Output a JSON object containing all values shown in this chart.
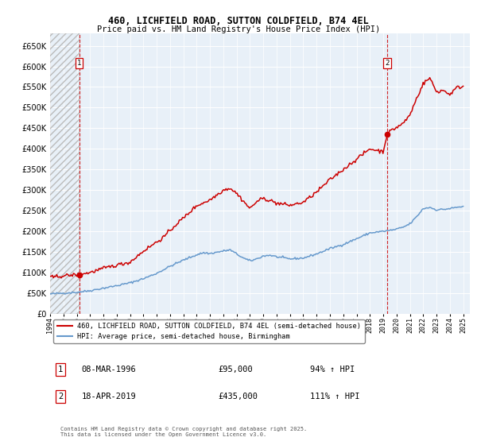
{
  "title_line1": "460, LICHFIELD ROAD, SUTTON COLDFIELD, B74 4EL",
  "title_line2": "Price paid vs. HM Land Registry's House Price Index (HPI)",
  "legend_line1": "460, LICHFIELD ROAD, SUTTON COLDFIELD, B74 4EL (semi-detached house)",
  "legend_line2": "HPI: Average price, semi-detached house, Birmingham",
  "annotation1_date": "08-MAR-1996",
  "annotation1_price": "£95,000",
  "annotation1_hpi": "94% ↑ HPI",
  "annotation2_date": "18-APR-2019",
  "annotation2_price": "£435,000",
  "annotation2_hpi": "111% ↑ HPI",
  "footer": "Contains HM Land Registry data © Crown copyright and database right 2025.\nThis data is licensed under the Open Government Licence v3.0.",
  "sale1_year": 1996.19,
  "sale1_price": 95000,
  "sale2_year": 2019.29,
  "sale2_price": 435000,
  "red_color": "#cc0000",
  "blue_color": "#6699cc",
  "plot_bg_color": "#e8f0f8",
  "ylim": [
    0,
    680000
  ],
  "xlim_left": 1994,
  "xlim_right": 2025.5,
  "hpi_anchors": [
    [
      1994.0,
      48000
    ],
    [
      1995.0,
      50000
    ],
    [
      1996.0,
      52000
    ],
    [
      1997.0,
      56000
    ],
    [
      1998.0,
      62000
    ],
    [
      1999.0,
      68000
    ],
    [
      2000.0,
      75000
    ],
    [
      2001.0,
      85000
    ],
    [
      2002.0,
      98000
    ],
    [
      2003.0,
      115000
    ],
    [
      2004.0,
      130000
    ],
    [
      2005.0,
      143000
    ],
    [
      2005.5,
      148000
    ],
    [
      2006.0,
      146000
    ],
    [
      2007.0,
      152000
    ],
    [
      2007.5,
      155000
    ],
    [
      2008.5,
      135000
    ],
    [
      2009.0,
      128000
    ],
    [
      2009.5,
      133000
    ],
    [
      2010.0,
      140000
    ],
    [
      2010.5,
      142000
    ],
    [
      2011.0,
      138000
    ],
    [
      2012.0,
      133000
    ],
    [
      2013.0,
      135000
    ],
    [
      2014.0,
      145000
    ],
    [
      2015.0,
      158000
    ],
    [
      2016.0,
      168000
    ],
    [
      2017.0,
      182000
    ],
    [
      2018.0,
      196000
    ],
    [
      2019.0,
      200000
    ],
    [
      2019.5,
      202000
    ],
    [
      2020.0,
      205000
    ],
    [
      2020.5,
      210000
    ],
    [
      2021.0,
      218000
    ],
    [
      2021.5,
      235000
    ],
    [
      2022.0,
      255000
    ],
    [
      2022.5,
      258000
    ],
    [
      2023.0,
      252000
    ],
    [
      2023.5,
      253000
    ],
    [
      2024.0,
      255000
    ],
    [
      2024.5,
      258000
    ],
    [
      2025.0,
      260000
    ]
  ],
  "red_anchors": [
    [
      1994.0,
      88000
    ],
    [
      1995.0,
      92000
    ],
    [
      1996.19,
      95000
    ],
    [
      1997.0,
      100000
    ],
    [
      1998.0,
      110000
    ],
    [
      1999.0,
      118000
    ],
    [
      2000.0,
      125000
    ],
    [
      2001.0,
      152000
    ],
    [
      2002.5,
      185000
    ],
    [
      2003.5,
      218000
    ],
    [
      2004.0,
      232000
    ],
    [
      2005.0,
      262000
    ],
    [
      2006.0,
      276000
    ],
    [
      2007.0,
      300000
    ],
    [
      2007.5,
      305000
    ],
    [
      2008.0,
      292000
    ],
    [
      2009.0,
      255000
    ],
    [
      2009.5,
      272000
    ],
    [
      2010.0,
      280000
    ],
    [
      2010.5,
      275000
    ],
    [
      2011.0,
      268000
    ],
    [
      2012.0,
      263000
    ],
    [
      2013.0,
      270000
    ],
    [
      2014.0,
      295000
    ],
    [
      2015.0,
      325000
    ],
    [
      2016.0,
      350000
    ],
    [
      2017.0,
      375000
    ],
    [
      2018.0,
      400000
    ],
    [
      2019.0,
      393000
    ],
    [
      2019.29,
      435000
    ],
    [
      2019.5,
      442000
    ],
    [
      2020.0,
      452000
    ],
    [
      2020.5,
      462000
    ],
    [
      2021.0,
      482000
    ],
    [
      2021.5,
      522000
    ],
    [
      2022.0,
      558000
    ],
    [
      2022.5,
      572000
    ],
    [
      2023.0,
      538000
    ],
    [
      2023.5,
      542000
    ],
    [
      2024.0,
      532000
    ],
    [
      2024.5,
      548000
    ],
    [
      2025.0,
      552000
    ]
  ]
}
